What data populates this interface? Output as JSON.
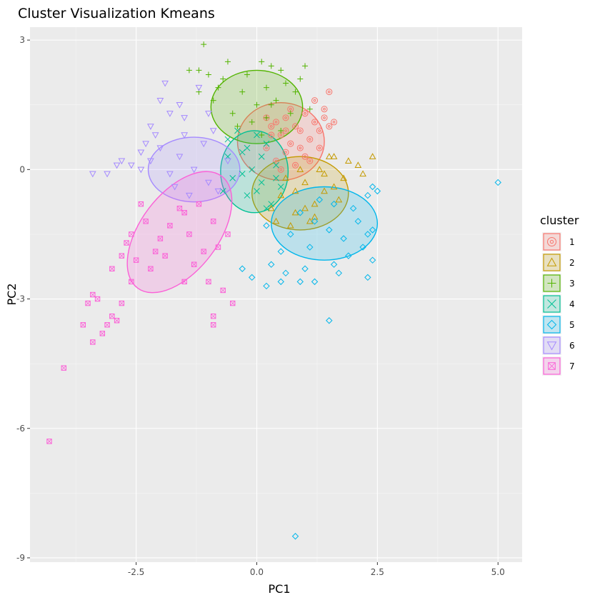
{
  "chart_data": {
    "type": "scatter",
    "title": "Cluster Visualization Kmeans",
    "xlabel": "PC1",
    "ylabel": "PC2",
    "xlim": [
      -4.7,
      5.5
    ],
    "ylim": [
      -9.1,
      3.3
    ],
    "x_ticks": [
      -2.5,
      0.0,
      2.5,
      5.0
    ],
    "x_tick_labels": [
      "-2.5",
      "0.0",
      "2.5",
      "5.0"
    ],
    "y_ticks": [
      3,
      0,
      -3,
      -6,
      -9
    ],
    "y_tick_labels": [
      "3",
      "0",
      "-3",
      "-6",
      "-9"
    ],
    "grid": true,
    "legend": {
      "title": "cluster",
      "placement": "right"
    },
    "series": [
      {
        "name": "1",
        "color": "#F8766D",
        "marker": "circle-dot",
        "ellipse": {
          "cx": 0.5,
          "cy": 0.65,
          "rx": 0.9,
          "ry": 0.9,
          "angle_deg": 0
        },
        "points": [
          [
            0.3,
            1.0
          ],
          [
            0.5,
            0.8
          ],
          [
            0.7,
            0.6
          ],
          [
            0.9,
            0.9
          ],
          [
            0.2,
            0.5
          ],
          [
            0.6,
            1.2
          ],
          [
            1.0,
            0.3
          ],
          [
            0.8,
            0.1
          ],
          [
            0.4,
            0.2
          ],
          [
            1.2,
            1.1
          ],
          [
            1.4,
            1.2
          ],
          [
            1.5,
            1.0
          ],
          [
            1.5,
            1.8
          ],
          [
            1.2,
            1.6
          ],
          [
            0.9,
            0.5
          ],
          [
            0.3,
            0.8
          ],
          [
            0.6,
            0.4
          ],
          [
            1.1,
            0.7
          ],
          [
            1.3,
            0.5
          ],
          [
            0.7,
            1.4
          ],
          [
            1.0,
            1.3
          ],
          [
            0.5,
            0.0
          ],
          [
            0.2,
            1.2
          ],
          [
            1.3,
            0.9
          ],
          [
            0.8,
            1.0
          ],
          [
            1.6,
            1.1
          ],
          [
            0.4,
            1.1
          ],
          [
            1.1,
            0.2
          ],
          [
            0.6,
            0.9
          ],
          [
            1.4,
            1.4
          ]
        ]
      },
      {
        "name": "2",
        "color": "#C49A00",
        "marker": "triangle",
        "ellipse": {
          "cx": 0.9,
          "cy": -0.55,
          "rx": 1.0,
          "ry": 0.85,
          "angle_deg": 0
        },
        "points": [
          [
            1.0,
            -0.3
          ],
          [
            1.2,
            -0.8
          ],
          [
            0.8,
            -1.0
          ],
          [
            0.6,
            -0.2
          ],
          [
            1.4,
            -0.5
          ],
          [
            1.6,
            -0.4
          ],
          [
            1.5,
            0.3
          ],
          [
            2.1,
            0.1
          ],
          [
            2.4,
            0.3
          ],
          [
            2.2,
            -0.1
          ],
          [
            1.9,
            0.2
          ],
          [
            0.7,
            -1.3
          ],
          [
            0.4,
            -1.2
          ],
          [
            1.1,
            -1.2
          ],
          [
            0.9,
            0.0
          ],
          [
            1.3,
            0.0
          ],
          [
            1.7,
            -0.7
          ],
          [
            0.5,
            -0.6
          ],
          [
            1.2,
            -1.1
          ],
          [
            0.8,
            -0.5
          ],
          [
            1.8,
            -0.2
          ],
          [
            1.0,
            -0.9
          ],
          [
            0.3,
            -0.9
          ],
          [
            1.4,
            -0.1
          ],
          [
            1.6,
            0.3
          ]
        ]
      },
      {
        "name": "3",
        "color": "#53B400",
        "marker": "plus",
        "ellipse": {
          "cx": 0.0,
          "cy": 1.45,
          "rx": 0.95,
          "ry": 0.85,
          "angle_deg": 0
        },
        "points": [
          [
            0.0,
            1.5
          ],
          [
            0.2,
            1.2
          ],
          [
            -0.3,
            1.8
          ],
          [
            0.4,
            1.6
          ],
          [
            -0.5,
            1.3
          ],
          [
            0.6,
            2.0
          ],
          [
            -0.2,
            2.2
          ],
          [
            0.1,
            2.5
          ],
          [
            -1.2,
            2.3
          ],
          [
            -0.8,
            1.9
          ],
          [
            -1.0,
            2.2
          ],
          [
            0.8,
            1.8
          ],
          [
            0.9,
            2.1
          ],
          [
            1.1,
            1.4
          ],
          [
            -1.1,
            2.9
          ],
          [
            0.3,
            2.4
          ],
          [
            -0.6,
            2.5
          ],
          [
            0.7,
            1.3
          ],
          [
            -0.4,
            1.0
          ],
          [
            0.5,
            0.9
          ],
          [
            -1.4,
            2.3
          ],
          [
            -0.9,
            1.6
          ],
          [
            1.0,
            2.4
          ],
          [
            0.2,
            1.9
          ],
          [
            -0.1,
            1.1
          ],
          [
            0.5,
            2.3
          ],
          [
            -0.7,
            2.1
          ],
          [
            0.1,
            0.8
          ],
          [
            -1.2,
            1.8
          ],
          [
            0.3,
            1.5
          ]
        ]
      },
      {
        "name": "4",
        "color": "#00C094",
        "marker": "cross",
        "ellipse": {
          "cx": -0.05,
          "cy": -0.05,
          "rx": 0.7,
          "ry": 0.95,
          "angle_deg": 0
        },
        "points": [
          [
            -0.1,
            0.0
          ],
          [
            0.1,
            -0.3
          ],
          [
            -0.3,
            0.4
          ],
          [
            0.2,
            0.6
          ],
          [
            -0.5,
            -0.2
          ],
          [
            -0.2,
            -0.6
          ],
          [
            0.3,
            -0.8
          ],
          [
            -0.6,
            0.3
          ],
          [
            0.4,
            0.1
          ],
          [
            -0.4,
            0.9
          ],
          [
            0.0,
            0.8
          ],
          [
            0.5,
            -0.4
          ],
          [
            -0.7,
            -0.5
          ],
          [
            0.2,
            -0.9
          ],
          [
            -0.3,
            -0.1
          ],
          [
            0.1,
            0.3
          ],
          [
            -0.2,
            0.5
          ],
          [
            0.4,
            -0.2
          ],
          [
            -0.6,
            0.7
          ],
          [
            0.0,
            -0.5
          ]
        ]
      },
      {
        "name": "5",
        "color": "#00B6EB",
        "marker": "diamond",
        "ellipse": {
          "cx": 1.4,
          "cy": -1.25,
          "rx": 1.1,
          "ry": 0.85,
          "angle_deg": 0
        },
        "points": [
          [
            1.2,
            -1.2
          ],
          [
            1.5,
            -1.4
          ],
          [
            0.9,
            -1.0
          ],
          [
            1.8,
            -1.6
          ],
          [
            1.1,
            -1.8
          ],
          [
            1.6,
            -0.8
          ],
          [
            2.1,
            -1.2
          ],
          [
            0.7,
            -1.5
          ],
          [
            2.3,
            -0.6
          ],
          [
            2.4,
            -0.4
          ],
          [
            2.5,
            -0.5
          ],
          [
            2.2,
            -1.8
          ],
          [
            2.4,
            -2.1
          ],
          [
            2.3,
            -2.5
          ],
          [
            0.3,
            -2.2
          ],
          [
            0.5,
            -2.6
          ],
          [
            0.2,
            -2.7
          ],
          [
            0.9,
            -2.6
          ],
          [
            1.2,
            -2.6
          ],
          [
            1.6,
            -2.2
          ],
          [
            1.5,
            -3.5
          ],
          [
            5.0,
            -0.3
          ],
          [
            0.8,
            -8.5
          ],
          [
            -0.1,
            -2.5
          ],
          [
            -0.3,
            -2.3
          ],
          [
            0.6,
            -2.4
          ],
          [
            2.4,
            -1.4
          ],
          [
            1.9,
            -2.0
          ],
          [
            1.3,
            -0.7
          ],
          [
            2.0,
            -0.9
          ],
          [
            0.5,
            -1.9
          ],
          [
            1.0,
            -2.3
          ],
          [
            2.3,
            -1.5
          ],
          [
            1.7,
            -2.4
          ],
          [
            0.2,
            -1.3
          ]
        ]
      },
      {
        "name": "6",
        "color": "#A58AFF",
        "marker": "triangle-down",
        "ellipse": {
          "cx": -1.3,
          "cy": 0.0,
          "rx": 0.95,
          "ry": 0.75,
          "angle_deg": 0
        },
        "points": [
          [
            -1.3,
            0.0
          ],
          [
            -1.6,
            0.3
          ],
          [
            -1.0,
            -0.3
          ],
          [
            -1.8,
            -0.1
          ],
          [
            -2.0,
            0.5
          ],
          [
            -1.5,
            0.8
          ],
          [
            -1.1,
            0.6
          ],
          [
            -2.2,
            0.2
          ],
          [
            -2.4,
            0.0
          ],
          [
            -2.6,
            0.1
          ],
          [
            -3.1,
            -0.1
          ],
          [
            -3.4,
            -0.1
          ],
          [
            -2.9,
            0.1
          ],
          [
            -2.8,
            0.2
          ],
          [
            -2.0,
            1.6
          ],
          [
            -1.9,
            2.0
          ],
          [
            -1.8,
            1.3
          ],
          [
            -1.6,
            1.5
          ],
          [
            -1.2,
            1.9
          ],
          [
            -2.2,
            1.0
          ],
          [
            -0.8,
            -0.5
          ],
          [
            -1.4,
            -0.6
          ],
          [
            -0.6,
            0.2
          ],
          [
            -2.1,
            0.8
          ],
          [
            -1.7,
            -0.4
          ],
          [
            -0.9,
            0.9
          ],
          [
            -1.5,
            1.2
          ],
          [
            -2.3,
            0.6
          ],
          [
            -1.0,
            1.3
          ],
          [
            -2.4,
            0.4
          ]
        ]
      },
      {
        "name": "7",
        "color": "#FB61D7",
        "marker": "square-cross",
        "ellipse": {
          "cx": -1.6,
          "cy": -1.45,
          "rx": 1.45,
          "ry": 0.9,
          "angle_deg": -53
        },
        "points": [
          [
            -1.5,
            -1.0
          ],
          [
            -1.8,
            -1.3
          ],
          [
            -1.2,
            -0.8
          ],
          [
            -2.0,
            -1.6
          ],
          [
            -2.3,
            -1.2
          ],
          [
            -2.6,
            -1.5
          ],
          [
            -2.8,
            -2.0
          ],
          [
            -3.0,
            -2.3
          ],
          [
            -3.3,
            -3.0
          ],
          [
            -3.5,
            -3.1
          ],
          [
            -3.4,
            -2.9
          ],
          [
            -3.6,
            -3.6
          ],
          [
            -3.4,
            -4.0
          ],
          [
            -3.2,
            -3.8
          ],
          [
            -3.1,
            -3.6
          ],
          [
            -2.9,
            -3.5
          ],
          [
            -4.0,
            -4.6
          ],
          [
            -4.3,
            -6.3
          ],
          [
            -2.8,
            -3.1
          ],
          [
            -3.0,
            -3.4
          ],
          [
            -0.9,
            -3.6
          ],
          [
            -0.9,
            -3.4
          ],
          [
            -0.5,
            -3.1
          ],
          [
            -1.5,
            -2.6
          ],
          [
            -0.7,
            -2.8
          ],
          [
            -2.6,
            -2.6
          ],
          [
            -1.1,
            -1.9
          ],
          [
            -1.9,
            -2.0
          ],
          [
            -2.2,
            -2.3
          ],
          [
            -1.3,
            -2.2
          ],
          [
            -0.8,
            -1.8
          ],
          [
            -2.7,
            -1.7
          ],
          [
            -1.6,
            -0.9
          ],
          [
            -0.9,
            -1.2
          ],
          [
            -2.4,
            -0.8
          ],
          [
            -0.6,
            -1.5
          ],
          [
            -2.1,
            -1.9
          ],
          [
            -1.4,
            -1.5
          ],
          [
            -1.0,
            -2.6
          ],
          [
            -2.5,
            -2.1
          ]
        ]
      }
    ]
  }
}
